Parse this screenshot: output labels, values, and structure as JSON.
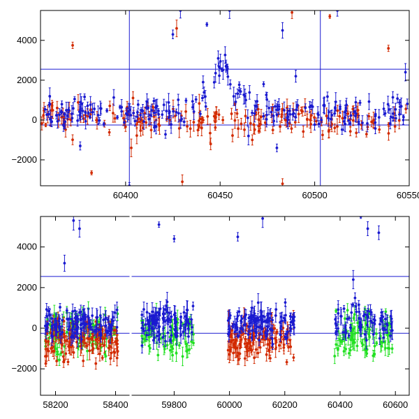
{
  "colors": {
    "red": "#d22a00",
    "blue": "#1a1ad0",
    "green": "#22e022",
    "reference_lines": "#1a1ad0"
  },
  "chart_data": [
    {
      "type": "scatter",
      "panel": "top",
      "xlim": [
        60355,
        60550
      ],
      "ylim": [
        -3300,
        5500
      ],
      "xticks": [
        60400,
        60450,
        60500,
        60550
      ],
      "yticks": [
        -2000,
        0,
        2000,
        4000
      ],
      "hlines": [
        2550,
        -250
      ],
      "vlines": [
        60402,
        60503
      ],
      "error_bars": true,
      "series": [
        {
          "color": "red",
          "samples": 180,
          "baseline": 50,
          "spread": 600,
          "outliers": [
            [
              60372,
              3750
            ],
            [
              60382,
              -2650
            ],
            [
              60403,
              -1400
            ],
            [
              60427,
              4600
            ],
            [
              60430,
              -3100
            ],
            [
              60445,
              -1200
            ],
            [
              60448,
              400
            ],
            [
              60467,
              -1000
            ],
            [
              60483,
              -3200
            ],
            [
              60488,
              5400
            ],
            [
              60508,
              5200
            ],
            [
              60539,
              3600
            ]
          ]
        },
        {
          "color": "blue",
          "samples": 240,
          "baseline": 300,
          "spread": 650,
          "flare": {
            "x": 60452,
            "peak": 2700
          },
          "outliers": [
            [
              60376,
              -1300
            ],
            [
              60402,
              -3300
            ],
            [
              60425,
              4300
            ],
            [
              60429,
              5500
            ],
            [
              60441,
              1900
            ],
            [
              60443,
              4800
            ],
            [
              60455,
              5500
            ],
            [
              60473,
              1800
            ],
            [
              60480,
              -1400
            ],
            [
              60483,
              4500
            ],
            [
              60512,
              5500
            ],
            [
              60548,
              2400
            ],
            [
              60490,
              2200
            ],
            [
              60465,
              -800
            ]
          ]
        }
      ]
    },
    {
      "type": "scatter",
      "panel": "bottom",
      "xlim": [
        58150,
        60650
      ],
      "ylim": [
        -3300,
        5500
      ],
      "xticks": [
        58200,
        58400,
        59800,
        60000,
        60200,
        60400,
        60600
      ],
      "yticks": [
        -2000,
        0,
        2000,
        4000
      ],
      "hlines": [
        2550,
        -250
      ],
      "segments": [
        {
          "xlim": [
            58150,
            58450
          ],
          "ticks": [
            58200,
            58400
          ]
        },
        {
          "xlim": [
            59650,
            60650
          ],
          "ticks": [
            59800,
            60000,
            60200,
            60400,
            60600
          ]
        }
      ],
      "error_bars": true,
      "series": [
        {
          "color": "green",
          "seasons": [
            [
              58165,
              58410
            ],
            [
              59680,
              59870
            ],
            [
              60380,
              60590
            ]
          ],
          "samples": 260,
          "baseline": -300,
          "spread": 900
        },
        {
          "color": "red",
          "seasons": [
            [
              58165,
              58410
            ],
            [
              59995,
              60235
            ]
          ],
          "samples": 260,
          "baseline": -600,
          "spread": 800
        },
        {
          "color": "blue",
          "seasons": [
            [
              58165,
              58410
            ],
            [
              59680,
              59870
            ],
            [
              59995,
              60235
            ],
            [
              60380,
              60590
            ]
          ],
          "samples": 420,
          "baseline": 200,
          "spread": 650,
          "flare": {
            "x": 60452,
            "peak": 2600
          },
          "outliers": [
            [
              58260,
              5300
            ],
            [
              58280,
              4900
            ],
            [
              58230,
              3200
            ],
            [
              59745,
              5100
            ],
            [
              59800,
              4400
            ],
            [
              60030,
              4500
            ],
            [
              60120,
              5400
            ],
            [
              60475,
              5500
            ],
            [
              60500,
              4900
            ],
            [
              60540,
              4700
            ]
          ]
        }
      ]
    }
  ]
}
